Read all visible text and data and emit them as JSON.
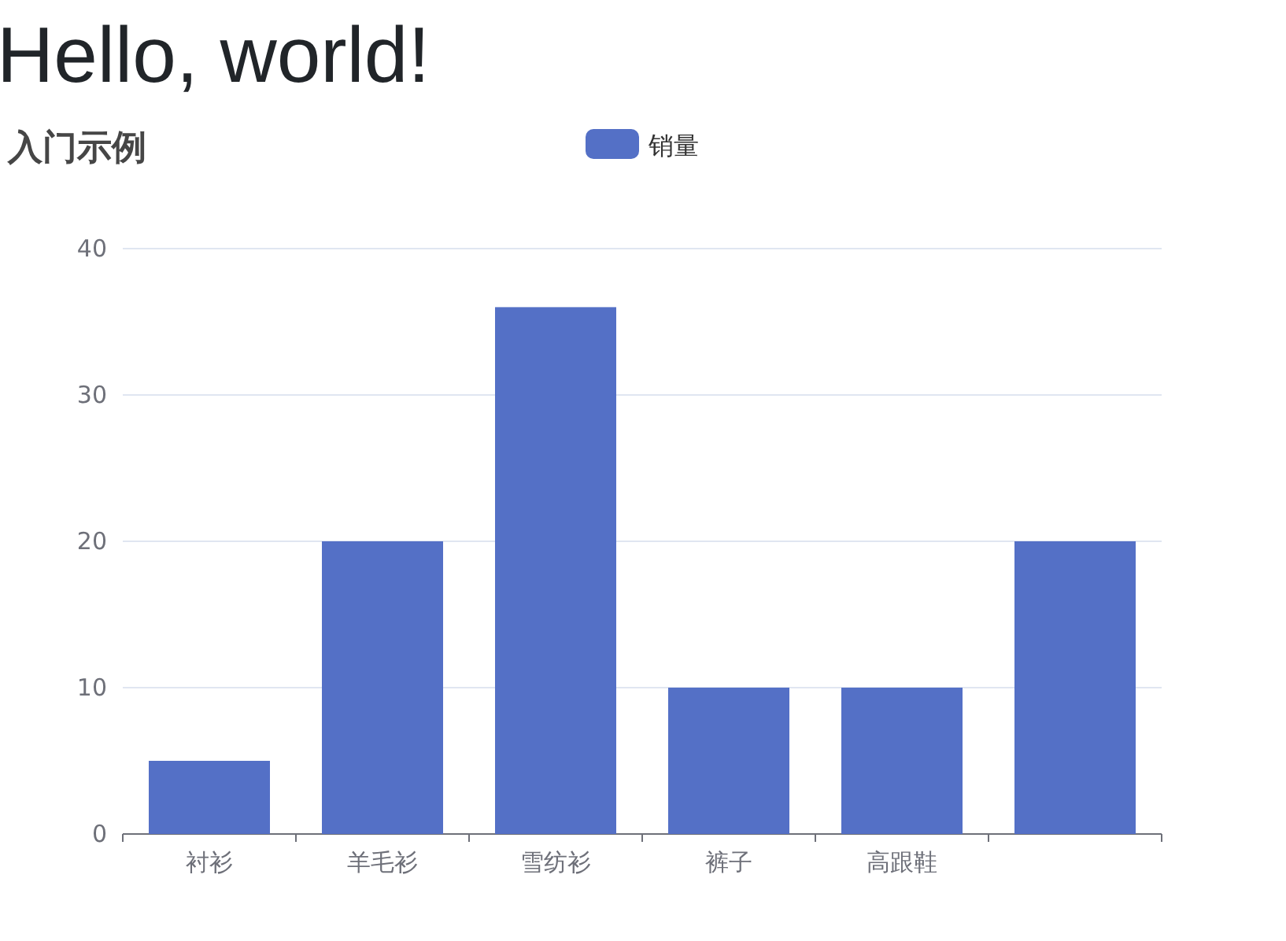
{
  "chart_data": {
    "type": "bar",
    "title": "Hello, world!",
    "subtitle": "入门示例",
    "categories": [
      "衬衫",
      "羊毛衫",
      "雪纺衫",
      "裤子",
      "高跟鞋",
      null
    ],
    "series": [
      {
        "name": "销量",
        "color": "#5470c6",
        "values": [
          5,
          20,
          36,
          10,
          10,
          20
        ]
      }
    ],
    "ylim": [
      0,
      40
    ],
    "yticks": [
      0,
      10,
      20,
      30,
      40
    ],
    "grid": "y",
    "legend": "top"
  }
}
